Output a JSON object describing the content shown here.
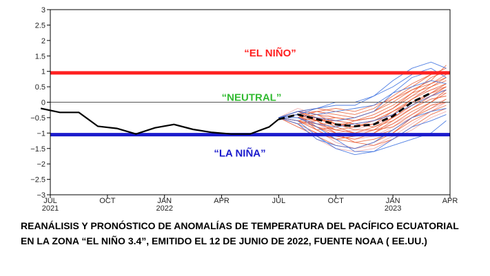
{
  "chart_data": {
    "type": "line",
    "ylim": [
      -3,
      3
    ],
    "yticks": [
      3,
      2.5,
      2,
      1.5,
      1,
      0.5,
      0,
      -0.5,
      -1,
      -1.5,
      -2,
      -2.5,
      -3
    ],
    "xlim": [
      0,
      21
    ],
    "xticks": [
      {
        "x": 0,
        "label": "JUL",
        "year": "2021"
      },
      {
        "x": 3,
        "label": "OCT",
        "year": ""
      },
      {
        "x": 6,
        "label": "JAN",
        "year": "2022"
      },
      {
        "x": 9,
        "label": "APR",
        "year": ""
      },
      {
        "x": 12,
        "label": "JUL",
        "year": ""
      },
      {
        "x": 15,
        "label": "OCT",
        "year": ""
      },
      {
        "x": 18,
        "label": "JAN",
        "year": "2023"
      },
      {
        "x": 21,
        "label": "APR",
        "year": ""
      }
    ],
    "thresholds": [
      {
        "label": "“EL NIÑO”",
        "y": 0.95,
        "color": "#ff2020"
      },
      {
        "label": "“NEUTRAL”",
        "y": 0,
        "color": "#33bb33"
      },
      {
        "label": "“LA NIÑA”",
        "y": -1.05,
        "color": "#1a1acc"
      }
    ],
    "analysis": {
      "x": [
        -0.5,
        0.5,
        1.5,
        2.5,
        3.5,
        4.5,
        5.5,
        6.5,
        7.5,
        8.5,
        9.5,
        10.5,
        11.5,
        12.0
      ],
      "values": [
        -0.2,
        -0.33,
        -0.33,
        -0.78,
        -0.85,
        -1.03,
        -0.83,
        -0.72,
        -0.88,
        -0.98,
        -1.03,
        -1.03,
        -0.8,
        -0.55
      ]
    },
    "forecast_mean": {
      "x": [
        12.0,
        13.0,
        14.0,
        15.0,
        16.0,
        17.0,
        18.0,
        19.0,
        20.0
      ],
      "values": [
        -0.55,
        -0.4,
        -0.55,
        -0.72,
        -0.78,
        -0.72,
        -0.45,
        0.0,
        0.3
      ]
    },
    "members_red": [
      [
        -0.5,
        -0.3,
        -0.4,
        -0.5,
        -0.6,
        -0.5,
        -0.2,
        0.3,
        0.8,
        1.0
      ],
      [
        -0.5,
        -0.5,
        -0.6,
        -0.9,
        -1.0,
        -0.8,
        -0.5,
        -0.1,
        0.3,
        0.6
      ],
      [
        -0.5,
        -0.4,
        -0.3,
        -0.4,
        -0.5,
        -0.3,
        0.0,
        0.4,
        0.7,
        1.2
      ],
      [
        -0.5,
        -0.6,
        -0.8,
        -1.0,
        -1.1,
        -1.0,
        -0.7,
        -0.3,
        0.0,
        0.4
      ],
      [
        -0.5,
        -0.3,
        -0.5,
        -0.7,
        -0.7,
        -0.6,
        -0.4,
        0.1,
        0.5,
        0.8
      ],
      [
        -0.5,
        -0.7,
        -1.0,
        -1.2,
        -1.3,
        -1.2,
        -1.0,
        -0.5,
        -0.2,
        0.1
      ],
      [
        -0.5,
        -0.4,
        -0.6,
        -0.6,
        -0.5,
        -0.3,
        0.1,
        0.5,
        0.9,
        1.1
      ],
      [
        -0.5,
        -0.5,
        -0.7,
        -0.9,
        -0.8,
        -0.7,
        -0.3,
        0.0,
        0.3,
        0.5
      ],
      [
        -0.5,
        -0.6,
        -0.5,
        -0.6,
        -0.7,
        -0.8,
        -0.6,
        -0.2,
        0.1,
        0.2
      ],
      [
        -0.5,
        -0.4,
        -0.8,
        -1.1,
        -1.2,
        -1.0,
        -0.6,
        -0.2,
        0.2,
        0.5
      ],
      [
        -0.5,
        -0.8,
        -1.1,
        -1.4,
        -1.5,
        -1.3,
        -1.0,
        -0.6,
        -0.3,
        -0.1
      ],
      [
        -0.5,
        -0.3,
        -0.2,
        -0.3,
        -0.4,
        -0.2,
        0.2,
        0.6,
        0.9,
        1.0
      ],
      [
        -0.5,
        -0.5,
        -0.4,
        -0.7,
        -0.9,
        -0.9,
        -0.8,
        -0.4,
        0.0,
        0.3
      ],
      [
        -0.5,
        -0.6,
        -0.9,
        -0.8,
        -0.6,
        -0.5,
        -0.2,
        0.2,
        0.6,
        0.9
      ],
      [
        -0.5,
        -0.4,
        -0.5,
        -0.8,
        -1.0,
        -1.1,
        -0.9,
        -0.5,
        -0.1,
        0.0
      ],
      [
        -0.5,
        -0.7,
        -0.6,
        -0.5,
        -0.6,
        -0.4,
        -0.1,
        0.3,
        0.5,
        0.7
      ],
      [
        -0.5,
        -0.3,
        -0.6,
        -1.0,
        -1.3,
        -1.4,
        -1.2,
        -0.8,
        -0.4,
        -0.2
      ],
      [
        -0.5,
        -0.5,
        -0.3,
        -0.2,
        -0.3,
        -0.1,
        0.1,
        0.4,
        0.6,
        0.8
      ],
      [
        -0.5,
        -0.6,
        -0.7,
        -0.7,
        -0.8,
        -0.6,
        -0.3,
        0.1,
        0.4,
        0.6
      ],
      [
        -0.5,
        -0.4,
        -0.9,
        -1.2,
        -1.1,
        -0.9,
        -0.5,
        -0.1,
        0.2,
        0.4
      ]
    ],
    "members_pink": [
      [
        -0.5,
        -0.6,
        -0.9,
        -1.3,
        -1.5,
        -1.4,
        -1.1,
        -0.7,
        -0.3,
        0.0
      ],
      [
        -0.5,
        -0.2,
        -0.4,
        -0.6,
        -0.7,
        -0.6,
        -0.3,
        0.0,
        0.2,
        0.3
      ],
      [
        -0.5,
        -0.7,
        -1.2,
        -1.5,
        -1.6,
        -1.5,
        -1.2,
        -0.9,
        -0.5,
        -0.3
      ],
      [
        -0.5,
        -0.5,
        -0.8,
        -0.9,
        -1.0,
        -0.9,
        -0.7,
        -0.4,
        -0.1,
        0.1
      ],
      [
        -0.5,
        -0.3,
        -0.3,
        -0.5,
        -0.6,
        -0.5,
        -0.2,
        0.2,
        0.4,
        0.5
      ],
      [
        -0.5,
        -0.8,
        -1.0,
        -1.1,
        -1.2,
        -1.1,
        -0.8,
        -0.5,
        -0.2,
        0.0
      ],
      [
        -0.5,
        -0.4,
        -0.7,
        -1.0,
        -0.9,
        -0.7,
        -0.5,
        -0.2,
        0.1,
        0.2
      ],
      [
        -0.5,
        -0.6,
        -0.5,
        -0.7,
        -0.8,
        -0.7,
        -0.4,
        0.0,
        0.3,
        0.4
      ]
    ],
    "members_blue": [
      [
        -0.5,
        -0.3,
        -0.2,
        -0.1,
        -0.1,
        0.2,
        0.7,
        1.1,
        1.3,
        1.1
      ],
      [
        -0.5,
        -0.5,
        -0.8,
        -1.2,
        -1.6,
        -1.6,
        -1.2,
        -0.8,
        -0.6,
        -0.4
      ],
      [
        -0.5,
        -0.4,
        -0.5,
        -0.6,
        -0.5,
        -0.3,
        0.3,
        0.8,
        1.0,
        0.9
      ],
      [
        -0.5,
        -0.6,
        -1.1,
        -1.5,
        -1.7,
        -1.6,
        -1.4,
        -1.2,
        -1.0,
        -0.6
      ],
      [
        -0.5,
        -0.3,
        -0.4,
        -0.3,
        -0.2,
        -0.1,
        0.3,
        0.5,
        0.7,
        0.6
      ],
      [
        -0.5,
        -0.7,
        -1.2,
        -1.4,
        -1.5,
        -1.3,
        -0.9,
        -0.5,
        -0.3,
        -0.2
      ],
      [
        -0.5,
        -0.4,
        -0.2,
        0.0,
        0.0,
        0.2,
        0.5,
        0.9,
        1.1,
        0.8
      ],
      [
        -0.5,
        -0.5,
        -0.7,
        -0.8,
        -0.7,
        -0.6,
        -0.4,
        -0.1,
        0.2,
        0.4
      ]
    ],
    "members_x": [
      12.0,
      13.0,
      14.0,
      15.0,
      16.0,
      17.0,
      18.0,
      19.0,
      20.0,
      20.8
    ]
  },
  "caption": {
    "line1": "REANÁLISIS Y PRONÓSTICO  DE ANOMALÍAS DE TEMPERATURA DEL PACÍFICO ECUATORIAL",
    "line2": "EN LA ZONA “EL NIÑO 3.4”, EMITIDO EL 12 DE JUNIO DE 2022, FUENTE NOAA ( EE.UU.)"
  }
}
